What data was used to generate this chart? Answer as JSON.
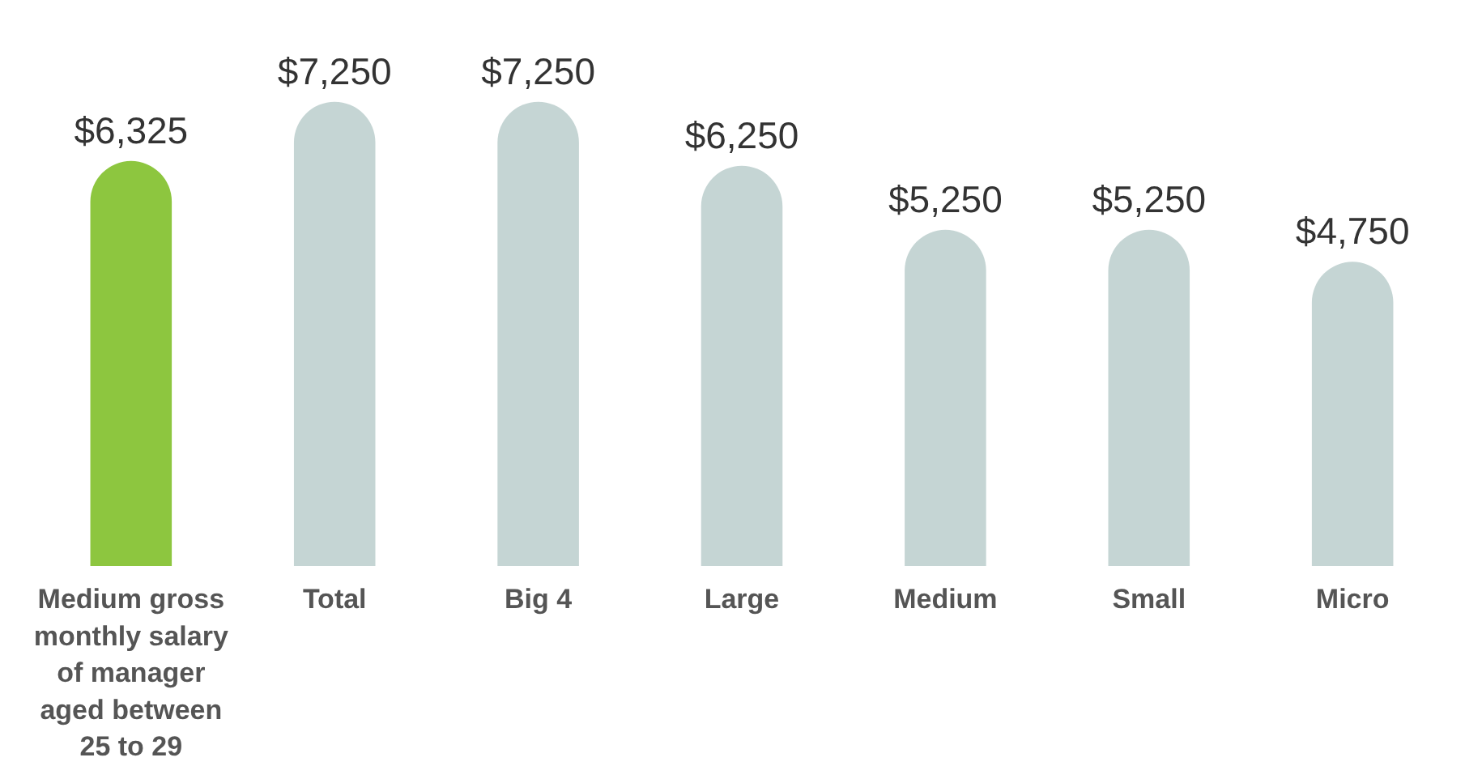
{
  "chart_data": {
    "type": "bar",
    "categories": [
      "Medium gross monthly salary of manager aged between 25 to 29",
      "Total",
      "Big 4",
      "Large",
      "Medium",
      "Small",
      "Micro"
    ],
    "values": [
      6325,
      7250,
      7250,
      6250,
      5250,
      5250,
      4750
    ],
    "colors": [
      "#8dc63f",
      "#c5d5d4",
      "#c5d5d4",
      "#c5d5d4",
      "#c5d5d4",
      "#c5d5d4",
      "#c5d5d4"
    ],
    "value_labels": [
      "$6,325",
      "$7,250",
      "$7,250",
      "$6,250",
      "$5,250",
      "$5,250",
      "$4,750"
    ]
  }
}
